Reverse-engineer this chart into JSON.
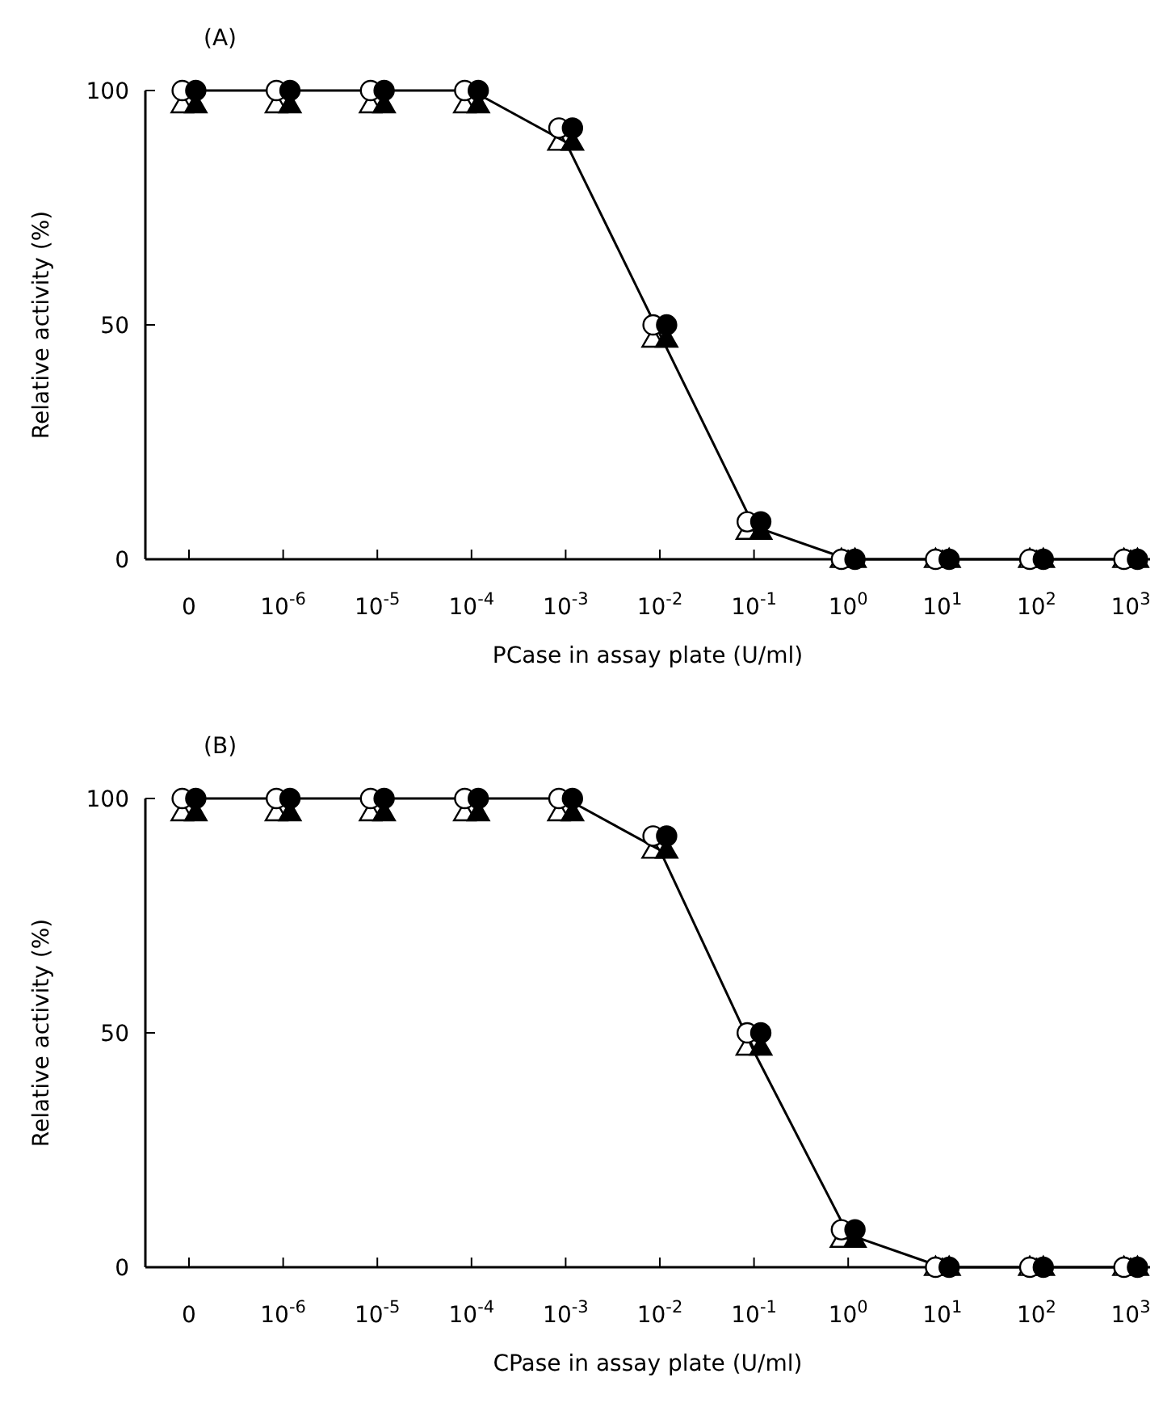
{
  "chart_data": [
    {
      "type": "scatter",
      "title": "(A)",
      "xlabel": "PCase in assay plate (U/ml)",
      "ylabel": "Relative activity (%)",
      "categories": [
        "0",
        "10$^{-6}$",
        "10$^{-5}$",
        "10$^{-4}$",
        "10$^{-3}$",
        "10$^{-2}$",
        "10$^{-1}$",
        "10$^{0}$",
        "10$^{1}$",
        "10$^{2}$",
        "10$^{3}$"
      ],
      "ylim": [
        0,
        100
      ],
      "yticks": [
        0,
        50,
        100
      ],
      "grid": false,
      "series": [
        {
          "type": "line",
          "color": "#000000",
          "marker": "none",
          "line_style": "solid",
          "values": [
            100,
            100,
            100,
            100,
            89,
            48,
            7,
            0,
            0,
            0,
            0
          ]
        },
        {
          "color": "#ffffff",
          "marker": "circle",
          "values": [
            100,
            100,
            100,
            100,
            92,
            50,
            8,
            0,
            0,
            0,
            0
          ]
        },
        {
          "color": "#000000",
          "marker": "circle",
          "values": [
            100,
            100,
            100,
            100,
            92,
            50,
            8,
            0,
            0,
            0,
            0
          ]
        },
        {
          "color": "#ffffff",
          "marker": "triangle",
          "values": [
            97,
            97,
            97,
            97,
            89,
            47,
            6,
            0,
            0,
            0,
            0
          ]
        },
        {
          "color": "#000000",
          "marker": "triangle",
          "values": [
            97,
            97,
            97,
            97,
            89,
            47,
            6,
            0,
            0,
            0,
            0
          ]
        }
      ]
    },
    {
      "type": "scatter",
      "title": "(B)",
      "xlabel": "CPase in assay plate (U/ml)",
      "ylabel": "Relative activity (%)",
      "categories": [
        "0",
        "10$^{-6}$",
        "10$^{-5}$",
        "10$^{-4}$",
        "10$^{-3}$",
        "10$^{-2}$",
        "10$^{-1}$",
        "10$^{0}$",
        "10$^{1}$",
        "10$^{2}$",
        "10$^{3}$"
      ],
      "ylim": [
        0,
        100
      ],
      "yticks": [
        0,
        50,
        100
      ],
      "grid": false,
      "series": [
        {
          "type": "line",
          "color": "#000000",
          "marker": "none",
          "line_style": "solid",
          "values": [
            100,
            100,
            100,
            100,
            100,
            89,
            46,
            7,
            0,
            0,
            0
          ]
        },
        {
          "color": "#ffffff",
          "marker": "circle",
          "values": [
            100,
            100,
            100,
            100,
            100,
            92,
            50,
            8,
            0,
            0,
            0
          ]
        },
        {
          "color": "#000000",
          "marker": "circle",
          "values": [
            100,
            100,
            100,
            100,
            100,
            92,
            50,
            8,
            0,
            0,
            0
          ]
        },
        {
          "color": "#ffffff",
          "marker": "triangle",
          "values": [
            97,
            97,
            97,
            97,
            97,
            89,
            47,
            6,
            0,
            0,
            0
          ]
        },
        {
          "color": "#000000",
          "marker": "triangle",
          "values": [
            97,
            97,
            97,
            97,
            97,
            89,
            47,
            6,
            0,
            0,
            0
          ]
        }
      ]
    }
  ]
}
